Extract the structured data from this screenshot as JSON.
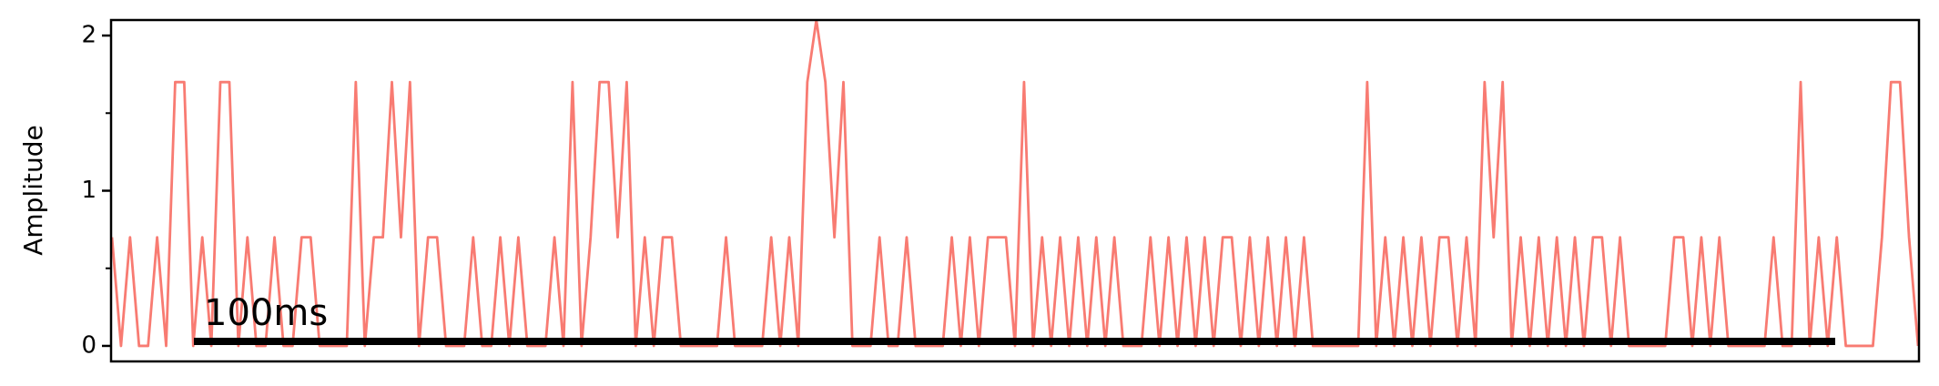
{
  "chart_data": {
    "type": "line",
    "y_label": "Amplitude",
    "annotation": "100ms",
    "series": [
      {
        "color": "#f87b72",
        "values": [
          0.7,
          0,
          0.7,
          0,
          0,
          0.7,
          0,
          1.7,
          1.7,
          0,
          0.7,
          0,
          1.7,
          1.7,
          0,
          0.7,
          0,
          0,
          0.7,
          0,
          0,
          0.7,
          0.7,
          0,
          0,
          0,
          0,
          1.7,
          0,
          0.7,
          0.7,
          1.7,
          0.7,
          1.7,
          0,
          0.7,
          0.7,
          0,
          0,
          0,
          0.7,
          0,
          0,
          0.7,
          0,
          0.7,
          0,
          0,
          0,
          0.7,
          0,
          1.7,
          0,
          0.7,
          1.7,
          1.7,
          0.7,
          1.7,
          0,
          0.7,
          0,
          0.7,
          0.7,
          0,
          0,
          0,
          0,
          0,
          0.7,
          0,
          0,
          0,
          0,
          0.7,
          0,
          0.7,
          0,
          1.7,
          2.1,
          1.7,
          0.7,
          1.7,
          0,
          0,
          0,
          0.7,
          0,
          0,
          0.7,
          0,
          0,
          0,
          0,
          0.7,
          0,
          0.7,
          0,
          0.7,
          0.7,
          0.7,
          0,
          1.7,
          0,
          0.7,
          0,
          0.7,
          0,
          0.7,
          0,
          0.7,
          0,
          0.7,
          0,
          0,
          0,
          0.7,
          0,
          0.7,
          0,
          0.7,
          0,
          0.7,
          0,
          0.7,
          0.7,
          0,
          0.7,
          0,
          0.7,
          0,
          0.7,
          0,
          0.7,
          0,
          0,
          0,
          0,
          0,
          0,
          1.7,
          0,
          0.7,
          0,
          0.7,
          0,
          0.7,
          0,
          0.7,
          0.7,
          0,
          0.7,
          0,
          1.7,
          0.7,
          1.7,
          0,
          0.7,
          0,
          0.7,
          0,
          0.7,
          0,
          0.7,
          0,
          0.7,
          0.7,
          0,
          0.7,
          0,
          0,
          0,
          0,
          0,
          0.7,
          0.7,
          0,
          0.7,
          0,
          0.7,
          0,
          0,
          0,
          0,
          0,
          0.7,
          0,
          0,
          1.7,
          0,
          0.7,
          0,
          0.7,
          0,
          0,
          0,
          0,
          0.7,
          1.7,
          1.7,
          0.7,
          0
        ]
      }
    ],
    "ylim": [
      -0.1,
      2.1
    ],
    "yticks": [
      0,
      1,
      2
    ],
    "yticks_minor": [
      0.5,
      1.5
    ]
  }
}
